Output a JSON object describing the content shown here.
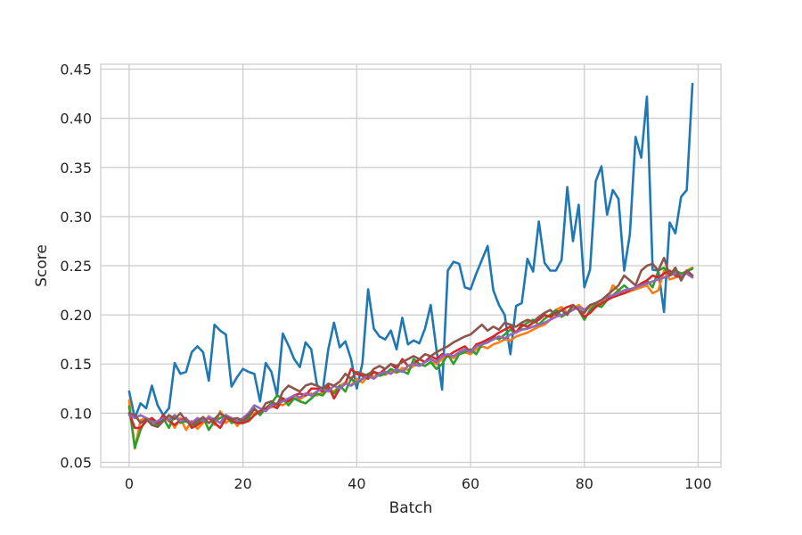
{
  "chart_data": {
    "type": "line",
    "xlabel": "Batch",
    "ylabel": "Score",
    "xlim": [
      -5,
      104
    ],
    "ylim": [
      0.045,
      0.455
    ],
    "xticks": [
      0,
      20,
      40,
      60,
      80,
      100
    ],
    "yticks": [
      0.05,
      0.1,
      0.15,
      0.2,
      0.25,
      0.3,
      0.35,
      0.4,
      0.45
    ],
    "ytick_decimals": 2,
    "grid": true,
    "x": [
      0,
      1,
      2,
      3,
      4,
      5,
      6,
      7,
      8,
      9,
      10,
      11,
      12,
      13,
      14,
      15,
      16,
      17,
      18,
      19,
      20,
      21,
      22,
      23,
      24,
      25,
      26,
      27,
      28,
      29,
      30,
      31,
      32,
      33,
      34,
      35,
      36,
      37,
      38,
      39,
      40,
      41,
      42,
      43,
      44,
      45,
      46,
      47,
      48,
      49,
      50,
      51,
      52,
      53,
      54,
      55,
      56,
      57,
      58,
      59,
      60,
      61,
      62,
      63,
      64,
      65,
      66,
      67,
      68,
      69,
      70,
      71,
      72,
      73,
      74,
      75,
      76,
      77,
      78,
      79,
      80,
      81,
      82,
      83,
      84,
      85,
      86,
      87,
      88,
      89,
      90,
      91,
      92,
      93,
      94,
      95,
      96,
      97,
      98,
      99
    ],
    "series": [
      {
        "color": "#1f77b4",
        "values": [
          0.122,
          0.095,
          0.11,
          0.105,
          0.128,
          0.108,
          0.098,
          0.105,
          0.151,
          0.14,
          0.142,
          0.162,
          0.168,
          0.162,
          0.133,
          0.19,
          0.184,
          0.18,
          0.127,
          0.137,
          0.145,
          0.142,
          0.14,
          0.112,
          0.151,
          0.142,
          0.118,
          0.181,
          0.169,
          0.155,
          0.147,
          0.172,
          0.165,
          0.129,
          0.122,
          0.165,
          0.192,
          0.167,
          0.173,
          0.155,
          0.125,
          0.151,
          0.226,
          0.186,
          0.178,
          0.175,
          0.184,
          0.165,
          0.197,
          0.17,
          0.174,
          0.171,
          0.186,
          0.21,
          0.165,
          0.124,
          0.245,
          0.254,
          0.252,
          0.228,
          0.226,
          0.242,
          0.256,
          0.27,
          0.225,
          0.21,
          0.2,
          0.16,
          0.209,
          0.212,
          0.257,
          0.244,
          0.295,
          0.253,
          0.245,
          0.245,
          0.256,
          0.33,
          0.275,
          0.312,
          0.228,
          0.246,
          0.336,
          0.351,
          0.302,
          0.327,
          0.318,
          0.245,
          0.282,
          0.381,
          0.36,
          0.422,
          0.246,
          0.245,
          0.203,
          0.294,
          0.283,
          0.32,
          0.327,
          0.435
        ]
      },
      {
        "color": "#ff7f0e",
        "values": [
          0.113,
          0.064,
          0.093,
          0.095,
          0.092,
          0.09,
          0.093,
          0.095,
          0.085,
          0.095,
          0.083,
          0.092,
          0.084,
          0.09,
          0.097,
          0.088,
          0.102,
          0.09,
          0.095,
          0.087,
          0.095,
          0.098,
          0.1,
          0.102,
          0.104,
          0.106,
          0.11,
          0.108,
          0.112,
          0.115,
          0.114,
          0.118,
          0.12,
          0.118,
          0.121,
          0.125,
          0.122,
          0.128,
          0.131,
          0.128,
          0.135,
          0.131,
          0.138,
          0.137,
          0.141,
          0.139,
          0.143,
          0.141,
          0.146,
          0.144,
          0.148,
          0.15,
          0.148,
          0.152,
          0.15,
          0.155,
          0.158,
          0.156,
          0.16,
          0.162,
          0.16,
          0.165,
          0.168,
          0.166,
          0.17,
          0.172,
          0.175,
          0.174,
          0.178,
          0.18,
          0.182,
          0.185,
          0.188,
          0.19,
          0.195,
          0.205,
          0.208,
          0.202,
          0.206,
          0.21,
          0.205,
          0.208,
          0.212,
          0.21,
          0.215,
          0.23,
          0.225,
          0.222,
          0.224,
          0.226,
          0.228,
          0.23,
          0.222,
          0.225,
          0.245,
          0.236,
          0.238,
          0.24,
          0.245,
          0.248
        ]
      },
      {
        "color": "#2ca02c",
        "values": [
          0.107,
          0.065,
          0.083,
          0.095,
          0.092,
          0.087,
          0.095,
          0.085,
          0.098,
          0.09,
          0.092,
          0.088,
          0.09,
          0.096,
          0.083,
          0.092,
          0.095,
          0.098,
          0.09,
          0.092,
          0.09,
          0.095,
          0.105,
          0.098,
          0.105,
          0.11,
          0.118,
          0.115,
          0.108,
          0.115,
          0.112,
          0.11,
          0.115,
          0.12,
          0.118,
          0.125,
          0.12,
          0.128,
          0.122,
          0.135,
          0.13,
          0.135,
          0.14,
          0.142,
          0.138,
          0.14,
          0.145,
          0.142,
          0.143,
          0.14,
          0.155,
          0.15,
          0.148,
          0.152,
          0.145,
          0.15,
          0.16,
          0.15,
          0.16,
          0.162,
          0.165,
          0.16,
          0.17,
          0.172,
          0.178,
          0.175,
          0.18,
          0.185,
          0.182,
          0.188,
          0.192,
          0.195,
          0.19,
          0.196,
          0.2,
          0.205,
          0.198,
          0.202,
          0.21,
          0.205,
          0.195,
          0.205,
          0.21,
          0.208,
          0.215,
          0.22,
          0.225,
          0.23,
          0.225,
          0.228,
          0.23,
          0.235,
          0.228,
          0.245,
          0.248,
          0.24,
          0.245,
          0.242,
          0.244,
          0.247
        ]
      },
      {
        "color": "#d62728",
        "values": [
          0.1,
          0.085,
          0.085,
          0.092,
          0.095,
          0.09,
          0.098,
          0.092,
          0.088,
          0.093,
          0.095,
          0.085,
          0.088,
          0.092,
          0.095,
          0.09,
          0.085,
          0.095,
          0.093,
          0.09,
          0.09,
          0.092,
          0.098,
          0.102,
          0.105,
          0.108,
          0.105,
          0.115,
          0.112,
          0.118,
          0.12,
          0.118,
          0.125,
          0.125,
          0.122,
          0.128,
          0.115,
          0.125,
          0.13,
          0.145,
          0.14,
          0.138,
          0.135,
          0.142,
          0.14,
          0.145,
          0.15,
          0.145,
          0.155,
          0.148,
          0.15,
          0.155,
          0.152,
          0.158,
          0.155,
          0.16,
          0.158,
          0.162,
          0.165,
          0.168,
          0.162,
          0.17,
          0.172,
          0.175,
          0.178,
          0.182,
          0.185,
          0.188,
          0.182,
          0.19,
          0.188,
          0.192,
          0.195,
          0.2,
          0.198,
          0.202,
          0.205,
          0.208,
          0.21,
          0.205,
          0.198,
          0.202,
          0.208,
          0.212,
          0.215,
          0.218,
          0.22,
          0.222,
          0.225,
          0.228,
          0.232,
          0.235,
          0.24,
          0.238,
          0.242,
          0.245,
          0.24,
          0.238,
          0.245,
          0.24
        ]
      },
      {
        "color": "#9467bd",
        "values": [
          0.098,
          0.095,
          0.098,
          0.095,
          0.09,
          0.092,
          0.095,
          0.093,
          0.098,
          0.092,
          0.094,
          0.09,
          0.095,
          0.092,
          0.096,
          0.094,
          0.09,
          0.098,
          0.095,
          0.092,
          0.095,
          0.1,
          0.108,
          0.105,
          0.102,
          0.108,
          0.11,
          0.112,
          0.115,
          0.118,
          0.116,
          0.12,
          0.118,
          0.122,
          0.125,
          0.122,
          0.128,
          0.125,
          0.13,
          0.128,
          0.132,
          0.135,
          0.138,
          0.135,
          0.14,
          0.142,
          0.14,
          0.145,
          0.142,
          0.148,
          0.15,
          0.148,
          0.152,
          0.155,
          0.152,
          0.158,
          0.16,
          0.158,
          0.162,
          0.165,
          0.162,
          0.168,
          0.17,
          0.172,
          0.175,
          0.178,
          0.176,
          0.18,
          0.182,
          0.185,
          0.186,
          0.188,
          0.19,
          0.192,
          0.195,
          0.198,
          0.2,
          0.202,
          0.205,
          0.208,
          0.205,
          0.21,
          0.212,
          0.215,
          0.218,
          0.22,
          0.222,
          0.225,
          0.226,
          0.228,
          0.23,
          0.232,
          0.234,
          0.236,
          0.238,
          0.24,
          0.242,
          0.24,
          0.242,
          0.238
        ]
      },
      {
        "color": "#8c564b",
        "values": [
          0.1,
          0.098,
          0.09,
          0.094,
          0.088,
          0.086,
          0.092,
          0.098,
          0.094,
          0.1,
          0.092,
          0.088,
          0.092,
          0.096,
          0.09,
          0.094,
          0.1,
          0.096,
          0.094,
          0.095,
          0.092,
          0.098,
          0.104,
          0.1,
          0.11,
          0.112,
          0.108,
          0.122,
          0.128,
          0.125,
          0.122,
          0.128,
          0.13,
          0.128,
          0.125,
          0.13,
          0.128,
          0.132,
          0.14,
          0.135,
          0.142,
          0.14,
          0.138,
          0.145,
          0.148,
          0.145,
          0.15,
          0.148,
          0.152,
          0.155,
          0.158,
          0.155,
          0.16,
          0.158,
          0.162,
          0.165,
          0.168,
          0.172,
          0.175,
          0.178,
          0.18,
          0.185,
          0.19,
          0.184,
          0.188,
          0.185,
          0.192,
          0.19,
          0.188,
          0.192,
          0.195,
          0.193,
          0.198,
          0.202,
          0.205,
          0.2,
          0.205,
          0.2,
          0.21,
          0.205,
          0.202,
          0.21,
          0.212,
          0.215,
          0.22,
          0.225,
          0.23,
          0.24,
          0.235,
          0.23,
          0.245,
          0.25,
          0.252,
          0.245,
          0.258,
          0.24,
          0.248,
          0.235,
          0.245,
          0.24
        ]
      }
    ]
  }
}
